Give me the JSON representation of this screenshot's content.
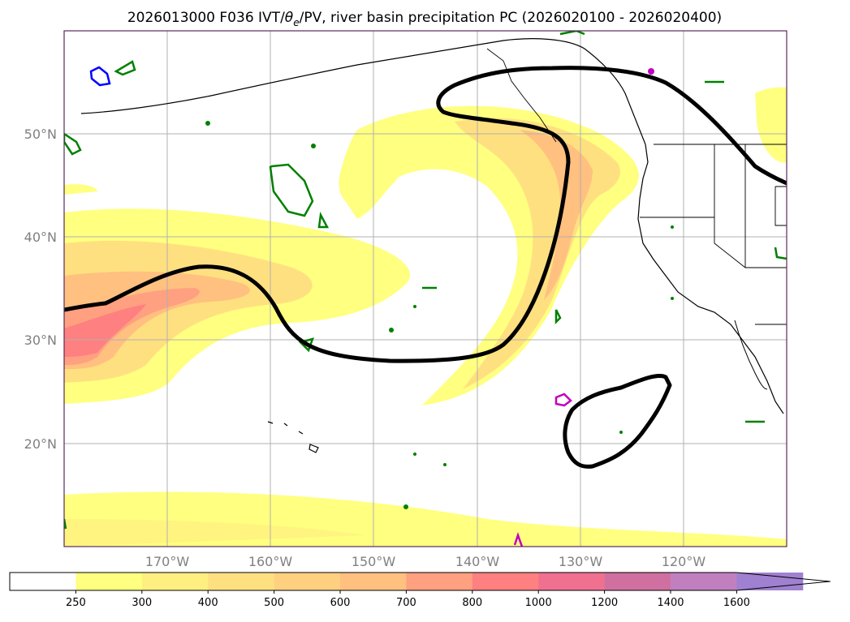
{
  "title": {
    "prefix": "2026013000 F036 IVT/",
    "theta_symbol": "θ",
    "theta_subscript": "e",
    "suffix": "/PV, river basin precipitation PC (2026020100 - 2026020400)"
  },
  "map": {
    "lat_labels": [
      "50°N",
      "40°N",
      "30°N",
      "20°N"
    ],
    "lon_labels": [
      "170°W",
      "160°W",
      "150°W",
      "140°W",
      "130°W",
      "120°W"
    ],
    "grid": true,
    "projection": "cylindrical",
    "extent": {
      "lon_min": -180,
      "lon_max": -110,
      "lat_min": 10,
      "lat_max": 60
    }
  },
  "colorbar": {
    "ticks": [
      "250",
      "300",
      "400",
      "500",
      "600",
      "700",
      "800",
      "1000",
      "1200",
      "1400",
      "1600"
    ],
    "colors": [
      "#ffffff",
      "#ffff80",
      "#ffef80",
      "#ffe080",
      "#ffd080",
      "#ffc080",
      "#ffa080",
      "#ff8080",
      "#f07090",
      "#d070a0",
      "#c080c0",
      "#a080d0"
    ],
    "extend": "max"
  },
  "styles": {
    "contour_color": "#000000",
    "green_contour": "#008000",
    "blue_contour": "#0000ff",
    "magenta_contour": "#c000c0",
    "grid_color": "#b0b0b0"
  }
}
